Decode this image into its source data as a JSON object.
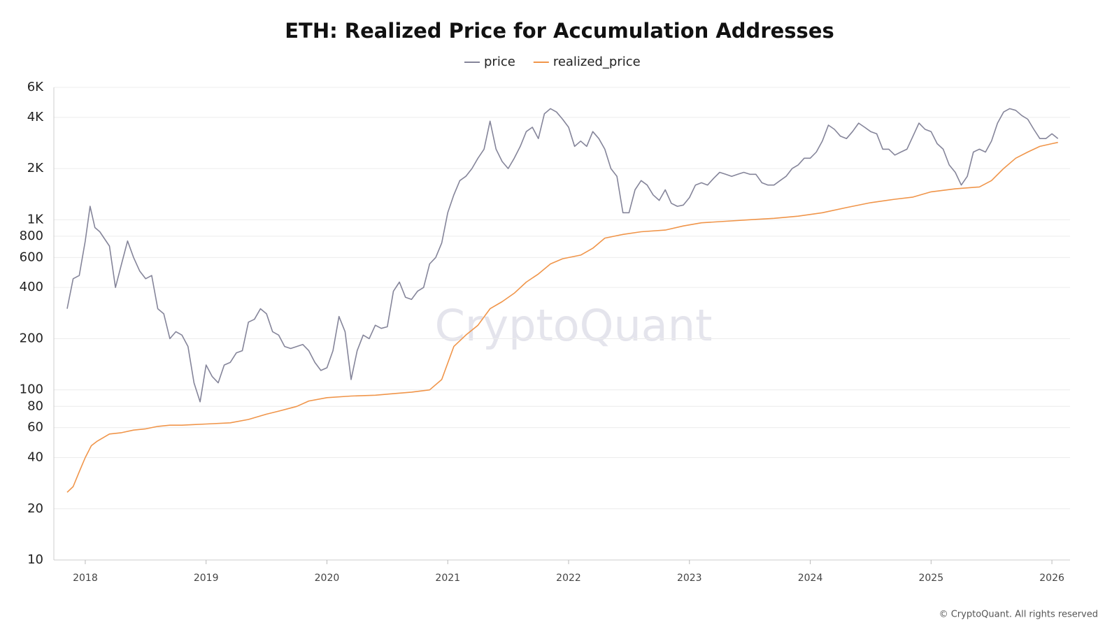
{
  "chart_data": {
    "type": "line",
    "title": "ETH: Realized Price for Accumulation Addresses",
    "watermark": "CryptoQuant",
    "footer": "© CryptoQuant. All rights reserved",
    "log_scale": true,
    "grid": true,
    "legend": "top",
    "xlim": [
      2017.74,
      2026.15
    ],
    "xticks": [
      2018,
      2019,
      2020,
      2021,
      2022,
      2023,
      2024,
      2025,
      2026
    ],
    "ylim": [
      10,
      6000
    ],
    "yticks": [
      10,
      20,
      40,
      60,
      80,
      100,
      200,
      400,
      600,
      800,
      {
        "value": 1000,
        "label": "1K"
      },
      {
        "value": 2000,
        "label": "2K"
      },
      {
        "value": 4000,
        "label": "4K"
      },
      {
        "value": 6000,
        "label": "6K"
      }
    ],
    "series": [
      {
        "name": "price",
        "color": "#85859a",
        "x": [
          2017.85,
          2017.9,
          2017.95,
          2018.0,
          2018.04,
          2018.08,
          2018.12,
          2018.2,
          2018.25,
          2018.3,
          2018.35,
          2018.4,
          2018.45,
          2018.5,
          2018.55,
          2018.6,
          2018.65,
          2018.7,
          2018.75,
          2018.8,
          2018.85,
          2018.9,
          2018.95,
          2019.0,
          2019.05,
          2019.1,
          2019.15,
          2019.2,
          2019.25,
          2019.3,
          2019.35,
          2019.4,
          2019.45,
          2019.5,
          2019.55,
          2019.6,
          2019.65,
          2019.7,
          2019.75,
          2019.8,
          2019.85,
          2019.9,
          2019.95,
          2020.0,
          2020.05,
          2020.1,
          2020.15,
          2020.2,
          2020.25,
          2020.3,
          2020.35,
          2020.4,
          2020.45,
          2020.5,
          2020.55,
          2020.6,
          2020.65,
          2020.7,
          2020.75,
          2020.8,
          2020.85,
          2020.9,
          2020.95,
          2021.0,
          2021.05,
          2021.1,
          2021.15,
          2021.2,
          2021.25,
          2021.3,
          2021.35,
          2021.4,
          2021.45,
          2021.5,
          2021.55,
          2021.6,
          2021.65,
          2021.7,
          2021.75,
          2021.8,
          2021.85,
          2021.9,
          2021.95,
          2022.0,
          2022.05,
          2022.1,
          2022.15,
          2022.2,
          2022.25,
          2022.3,
          2022.35,
          2022.4,
          2022.45,
          2022.5,
          2022.55,
          2022.6,
          2022.65,
          2022.7,
          2022.75,
          2022.8,
          2022.85,
          2022.9,
          2022.95,
          2023.0,
          2023.05,
          2023.1,
          2023.15,
          2023.2,
          2023.25,
          2023.3,
          2023.35,
          2023.4,
          2023.45,
          2023.5,
          2023.55,
          2023.6,
          2023.65,
          2023.7,
          2023.75,
          2023.8,
          2023.85,
          2023.9,
          2023.95,
          2024.0,
          2024.05,
          2024.1,
          2024.15,
          2024.2,
          2024.25,
          2024.3,
          2024.35,
          2024.4,
          2024.45,
          2024.5,
          2024.55,
          2024.6,
          2024.65,
          2024.7,
          2024.75,
          2024.8,
          2024.85,
          2024.9,
          2024.95,
          2025.0,
          2025.05,
          2025.1,
          2025.15,
          2025.2,
          2025.25,
          2025.3,
          2025.35,
          2025.4,
          2025.45,
          2025.5,
          2025.55,
          2025.6,
          2025.65,
          2025.7,
          2025.75,
          2025.8,
          2025.85,
          2025.9,
          2025.95,
          2026.0,
          2026.05
        ],
        "values": [
          300,
          450,
          470,
          750,
          1200,
          900,
          850,
          700,
          400,
          550,
          750,
          600,
          500,
          450,
          470,
          300,
          280,
          200,
          220,
          210,
          180,
          110,
          85,
          140,
          120,
          110,
          140,
          145,
          165,
          170,
          250,
          260,
          300,
          280,
          220,
          210,
          180,
          175,
          180,
          185,
          170,
          145,
          130,
          135,
          170,
          270,
          220,
          115,
          170,
          210,
          200,
          240,
          230,
          235,
          380,
          430,
          350,
          340,
          380,
          400,
          550,
          600,
          730,
          1100,
          1400,
          1700,
          1800,
          2000,
          2300,
          2600,
          3800,
          2600,
          2200,
          2000,
          2300,
          2700,
          3300,
          3500,
          3000,
          4200,
          4500,
          4300,
          3900,
          3500,
          2700,
          2900,
          2700,
          3300,
          3000,
          2600,
          2000,
          1800,
          1100,
          1100,
          1500,
          1700,
          1600,
          1400,
          1300,
          1500,
          1250,
          1200,
          1220,
          1350,
          1600,
          1650,
          1600,
          1750,
          1900,
          1850,
          1800,
          1850,
          1900,
          1850,
          1850,
          1650,
          1600,
          1600,
          1700,
          1800,
          2000,
          2100,
          2300,
          2300,
          2500,
          2900,
          3600,
          3400,
          3100,
          3000,
          3300,
          3700,
          3500,
          3300,
          3200,
          2600,
          2600,
          2400,
          2500,
          2600,
          3100,
          3700,
          3400,
          3300,
          2800,
          2600,
          2100,
          1900,
          1600,
          1800,
          2500,
          2600,
          2500,
          2900,
          3700,
          4300,
          4500,
          4400,
          4100,
          3900,
          3400,
          3000,
          3000,
          3200,
          3000
        ]
      },
      {
        "name": "realized_price",
        "color": "#f0954a",
        "x": [
          2017.85,
          2017.9,
          2017.95,
          2018.0,
          2018.05,
          2018.1,
          2018.2,
          2018.3,
          2018.4,
          2018.5,
          2018.6,
          2018.7,
          2018.8,
          2018.9,
          2019.0,
          2019.2,
          2019.35,
          2019.5,
          2019.6,
          2019.75,
          2019.85,
          2020.0,
          2020.2,
          2020.4,
          2020.55,
          2020.7,
          2020.85,
          2020.95,
          2021.05,
          2021.15,
          2021.25,
          2021.35,
          2021.45,
          2021.55,
          2021.65,
          2021.75,
          2021.85,
          2021.95,
          2022.1,
          2022.2,
          2022.3,
          2022.45,
          2022.6,
          2022.8,
          2022.95,
          2023.1,
          2023.3,
          2023.5,
          2023.7,
          2023.9,
          2024.1,
          2024.3,
          2024.5,
          2024.7,
          2024.85,
          2025.0,
          2025.2,
          2025.4,
          2025.5,
          2025.6,
          2025.7,
          2025.8,
          2025.9,
          2026.0,
          2026.05
        ],
        "values": [
          25,
          27,
          33,
          40,
          47,
          50,
          55,
          56,
          58,
          59,
          61,
          62,
          62,
          62.5,
          63,
          64,
          67,
          72,
          75,
          80,
          86,
          90,
          92,
          93,
          95,
          97,
          100,
          115,
          180,
          210,
          240,
          300,
          330,
          370,
          430,
          480,
          550,
          590,
          620,
          680,
          780,
          820,
          850,
          870,
          920,
          960,
          980,
          1000,
          1020,
          1050,
          1100,
          1180,
          1260,
          1320,
          1360,
          1460,
          1520,
          1560,
          1700,
          2000,
          2300,
          2500,
          2700,
          2800,
          2850
        ]
      }
    ]
  }
}
